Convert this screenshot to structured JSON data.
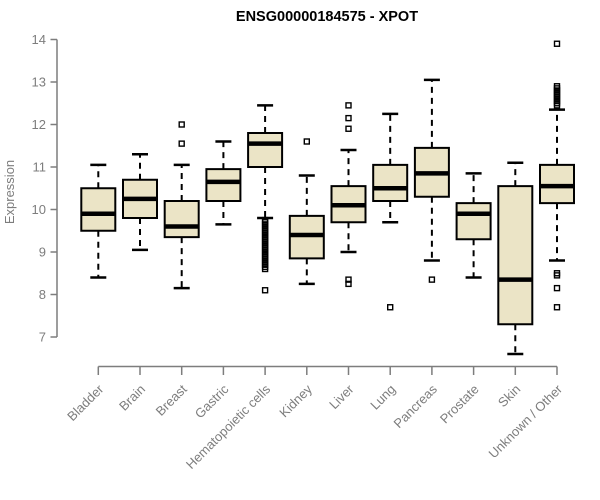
{
  "chart_data": {
    "type": "boxplot",
    "title": "ENSG00000184575 - XPOT",
    "ylabel": "Expression",
    "xlabel": "",
    "ylim": [
      6.5,
      14
    ],
    "yticks": [
      7,
      8,
      9,
      10,
      11,
      12,
      13,
      14
    ],
    "grid": false,
    "legend": "none",
    "categories": [
      "Bladder",
      "Brain",
      "Breast",
      "Gastric",
      "Hematopoietic cells",
      "Kidney",
      "Liver",
      "Lung",
      "Pancreas",
      "Prostate",
      "Skin",
      "Unknown / Other"
    ],
    "boxes": [
      {
        "label": "Bladder",
        "whislo": 8.4,
        "q1": 9.5,
        "med": 9.9,
        "q3": 10.5,
        "whishi": 11.05,
        "outliers": []
      },
      {
        "label": "Brain",
        "whislo": 9.05,
        "q1": 9.8,
        "med": 10.25,
        "q3": 10.7,
        "whishi": 11.3,
        "outliers": []
      },
      {
        "label": "Breast",
        "whislo": 8.15,
        "q1": 9.35,
        "med": 9.6,
        "q3": 10.2,
        "whishi": 11.05,
        "outliers": [
          11.55,
          12.0
        ]
      },
      {
        "label": "Gastric",
        "whislo": 9.65,
        "q1": 10.2,
        "med": 10.65,
        "q3": 10.95,
        "whishi": 11.6,
        "outliers": []
      },
      {
        "label": "Hematopoietic cells",
        "whislo": 9.8,
        "q1": 11.0,
        "med": 11.55,
        "q3": 11.8,
        "whishi": 12.45,
        "outliers": [
          9.75,
          9.7,
          9.65,
          9.6,
          9.55,
          9.5,
          9.45,
          9.4,
          9.35,
          9.3,
          9.25,
          9.2,
          9.15,
          9.1,
          9.05,
          9.0,
          8.95,
          8.9,
          8.85,
          8.8,
          8.75,
          8.7,
          8.65,
          8.6,
          8.1
        ]
      },
      {
        "label": "Kidney",
        "whislo": 8.25,
        "q1": 8.85,
        "med": 9.4,
        "q3": 9.85,
        "whishi": 10.8,
        "outliers": [
          11.6
        ]
      },
      {
        "label": "Liver",
        "whislo": 9.0,
        "q1": 9.7,
        "med": 10.1,
        "q3": 10.55,
        "whishi": 11.4,
        "outliers": [
          12.45,
          12.15,
          11.9,
          8.35,
          8.25
        ]
      },
      {
        "label": "Lung",
        "whislo": 9.7,
        "q1": 10.2,
        "med": 10.5,
        "q3": 11.05,
        "whishi": 12.25,
        "outliers": [
          7.7
        ]
      },
      {
        "label": "Pancreas",
        "whislo": 8.8,
        "q1": 10.3,
        "med": 10.85,
        "q3": 11.45,
        "whishi": 13.05,
        "outliers": [
          8.35
        ]
      },
      {
        "label": "Prostate",
        "whislo": 8.4,
        "q1": 9.3,
        "med": 9.9,
        "q3": 10.15,
        "whishi": 10.85,
        "outliers": []
      },
      {
        "label": "Skin",
        "whislo": 6.6,
        "q1": 7.3,
        "med": 8.35,
        "q3": 10.55,
        "whishi": 11.1,
        "outliers": []
      },
      {
        "label": "Unknown / Other",
        "whislo": 8.8,
        "q1": 10.15,
        "med": 10.55,
        "q3": 11.05,
        "whishi": 12.35,
        "outliers": [
          13.9,
          12.9,
          12.85,
          12.8,
          12.75,
          12.7,
          12.65,
          12.6,
          12.55,
          12.5,
          12.45,
          8.5,
          8.45,
          8.15,
          7.7
        ]
      }
    ],
    "colors": {
      "box_fill": "#EBE4C6",
      "box_stroke": "#000000",
      "median": "#000000",
      "axis_text": "#7D7D7D",
      "axis_line": "#7D7D7D",
      "title": "#000000",
      "background": "#FFFFFF"
    }
  }
}
